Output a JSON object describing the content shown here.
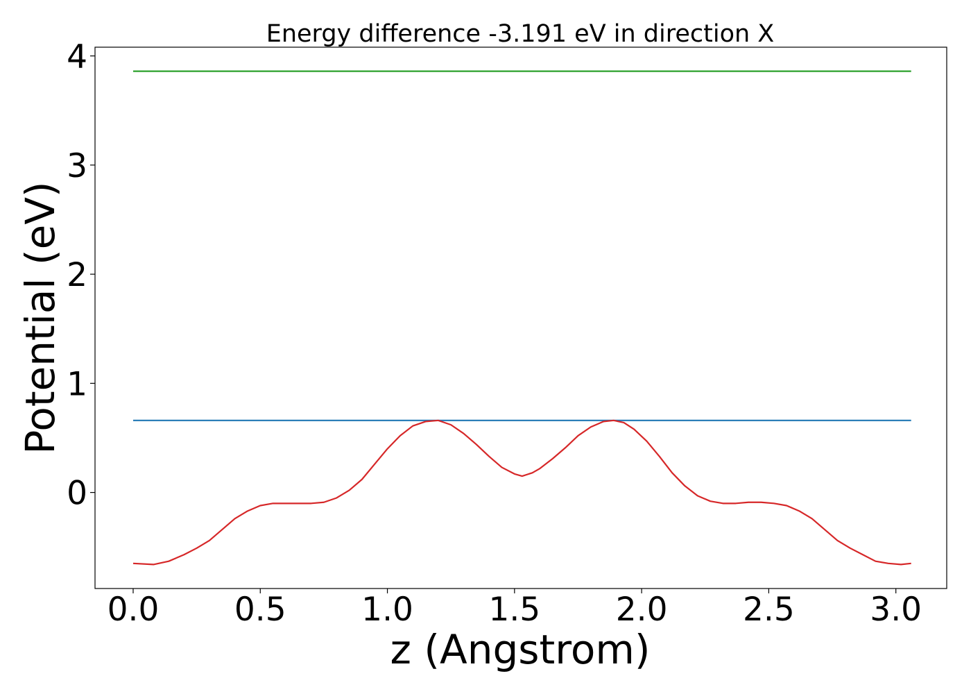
{
  "chart_data": {
    "type": "line",
    "title": "Energy difference -3.191 eV in direction X",
    "xlabel": "z (Angstrom)",
    "ylabel": "Potential (eV)",
    "xlim": [
      -0.15,
      3.2
    ],
    "ylim": [
      -0.88,
      4.08
    ],
    "xticks": [
      {
        "value": 0.0,
        "label": "0.0"
      },
      {
        "value": 0.5,
        "label": "0.5"
      },
      {
        "value": 1.0,
        "label": "1.0"
      },
      {
        "value": 1.5,
        "label": "1.5"
      },
      {
        "value": 2.0,
        "label": "2.0"
      },
      {
        "value": 2.5,
        "label": "2.5"
      },
      {
        "value": 3.0,
        "label": "3.0"
      }
    ],
    "yticks": [
      {
        "value": 0,
        "label": "0"
      },
      {
        "value": 1,
        "label": "1"
      },
      {
        "value": 2,
        "label": "2"
      },
      {
        "value": 3,
        "label": "3"
      },
      {
        "value": 4,
        "label": "4"
      }
    ],
    "grid": false,
    "legend": "none",
    "series": [
      {
        "color": "#2ca02c",
        "x": [
          0.0,
          3.06
        ],
        "y": [
          3.86,
          3.86
        ]
      },
      {
        "color": "#1f77b4",
        "x": [
          0.0,
          3.06
        ],
        "y": [
          0.66,
          0.66
        ]
      },
      {
        "color": "#d62728",
        "x": [
          0.0,
          0.08,
          0.14,
          0.2,
          0.25,
          0.3,
          0.35,
          0.4,
          0.45,
          0.5,
          0.55,
          0.6,
          0.65,
          0.7,
          0.75,
          0.8,
          0.85,
          0.9,
          0.95,
          1.0,
          1.05,
          1.1,
          1.15,
          1.2,
          1.25,
          1.3,
          1.35,
          1.4,
          1.45,
          1.5,
          1.53,
          1.57,
          1.6,
          1.65,
          1.7,
          1.75,
          1.8,
          1.85,
          1.89,
          1.93,
          1.97,
          2.02,
          2.07,
          2.12,
          2.17,
          2.22,
          2.27,
          2.32,
          2.37,
          2.42,
          2.47,
          2.52,
          2.57,
          2.62,
          2.67,
          2.72,
          2.77,
          2.82,
          2.87,
          2.92,
          2.97,
          3.02,
          3.06
        ],
        "y": [
          -0.65,
          -0.66,
          -0.63,
          -0.57,
          -0.51,
          -0.44,
          -0.34,
          -0.24,
          -0.17,
          -0.12,
          -0.1,
          -0.1,
          -0.1,
          -0.1,
          -0.09,
          -0.05,
          0.02,
          0.12,
          0.26,
          0.4,
          0.52,
          0.61,
          0.65,
          0.66,
          0.62,
          0.54,
          0.44,
          0.33,
          0.23,
          0.17,
          0.15,
          0.18,
          0.22,
          0.31,
          0.41,
          0.52,
          0.6,
          0.65,
          0.66,
          0.64,
          0.58,
          0.47,
          0.33,
          0.18,
          0.06,
          -0.03,
          -0.08,
          -0.1,
          -0.1,
          -0.09,
          -0.09,
          -0.1,
          -0.12,
          -0.17,
          -0.24,
          -0.34,
          -0.44,
          -0.51,
          -0.57,
          -0.63,
          -0.65,
          -0.66,
          -0.65
        ]
      }
    ]
  }
}
